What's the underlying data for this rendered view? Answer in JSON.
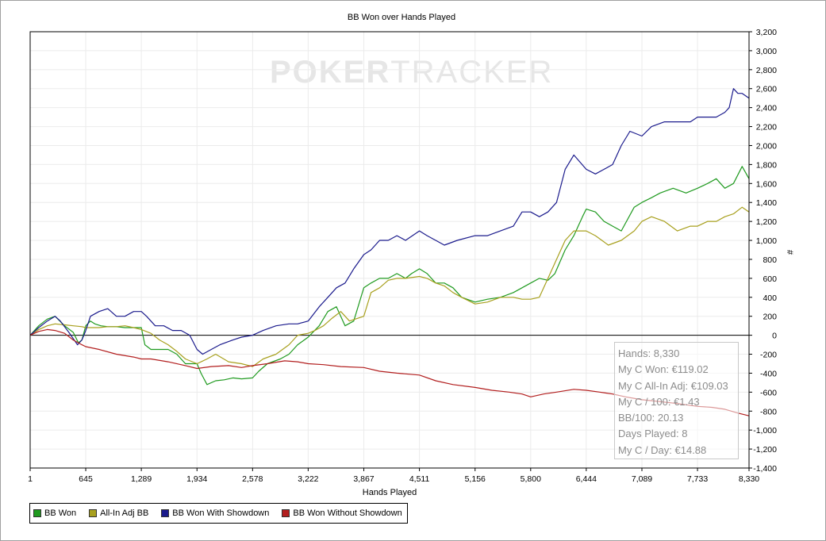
{
  "chart_data": {
    "type": "line",
    "title": "BB Won over Hands Played",
    "xlabel": "Hands Played",
    "ylabel": "#",
    "xlim": [
      1,
      8330
    ],
    "ylim": [
      -1400,
      3200
    ],
    "x_ticks": [
      1,
      645,
      1289,
      1934,
      2578,
      3222,
      3867,
      4511,
      5156,
      5800,
      6444,
      7089,
      7733,
      8330
    ],
    "x_tick_labels": [
      "1",
      "645",
      "1,289",
      "1,934",
      "2,578",
      "3,222",
      "3,867",
      "4,511",
      "5,156",
      "5,800",
      "6,444",
      "7,089",
      "7,733",
      "8,330"
    ],
    "y_ticks": [
      3200,
      3000,
      2800,
      2600,
      2400,
      2200,
      2000,
      1800,
      1600,
      1400,
      1200,
      1000,
      800,
      600,
      400,
      200,
      0,
      -200,
      -400,
      -600,
      -800,
      -1000,
      -1200,
      -1400
    ],
    "y_tick_labels": [
      "3,200",
      "3,000",
      "2,800",
      "2,600",
      "2,400",
      "2,200",
      "2,000",
      "1,800",
      "1,600",
      "1,400",
      "1,200",
      "1,000",
      "800",
      "600",
      "400",
      "200",
      "0",
      "-200",
      "-400",
      "-600",
      "-800",
      "-1,000",
      "-1,200",
      "-1,400"
    ],
    "grid": true,
    "legend_position": "bottom-left",
    "watermark": {
      "part1": "POKER",
      "part2": "TRACKER"
    },
    "series": [
      {
        "name": "BB Won",
        "color": "#1f9a1f",
        "x": [
          1,
          100,
          200,
          290,
          400,
          500,
          560,
          600,
          645,
          700,
          750,
          820,
          900,
          1000,
          1100,
          1200,
          1289,
          1330,
          1400,
          1500,
          1600,
          1700,
          1800,
          1934,
          1980,
          2050,
          2150,
          2250,
          2350,
          2450,
          2578,
          2650,
          2750,
          2900,
          3000,
          3100,
          3222,
          3350,
          3450,
          3550,
          3650,
          3750,
          3867,
          3950,
          4050,
          4150,
          4250,
          4350,
          4420,
          4511,
          4600,
          4700,
          4800,
          4900,
          5000,
          5156,
          5300,
          5450,
          5600,
          5700,
          5800,
          5900,
          6000,
          6080,
          6200,
          6300,
          6400,
          6444,
          6550,
          6650,
          6750,
          6850,
          7000,
          7089,
          7200,
          7300,
          7450,
          7600,
          7733,
          7850,
          7950,
          8050,
          8150,
          8250,
          8330
        ],
        "y": [
          0,
          100,
          170,
          200,
          100,
          30,
          -80,
          -50,
          100,
          150,
          120,
          100,
          90,
          90,
          80,
          80,
          80,
          -100,
          -150,
          -150,
          -150,
          -200,
          -300,
          -300,
          -400,
          -520,
          -480,
          -470,
          -450,
          -460,
          -450,
          -380,
          -300,
          -250,
          -200,
          -100,
          -20,
          100,
          250,
          300,
          100,
          150,
          500,
          550,
          600,
          600,
          650,
          600,
          650,
          700,
          650,
          550,
          550,
          500,
          400,
          350,
          380,
          400,
          450,
          500,
          550,
          600,
          580,
          650,
          900,
          1050,
          1250,
          1330,
          1300,
          1200,
          1150,
          1100,
          1350,
          1400,
          1450,
          1500,
          1550,
          1500,
          1550,
          1600,
          1650,
          1550,
          1600,
          1780,
          1650
        ]
      },
      {
        "name": "All-In Adj BB",
        "color": "#a8a01e",
        "x": [
          1,
          100,
          200,
          290,
          400,
          500,
          600,
          645,
          700,
          800,
          900,
          1000,
          1100,
          1200,
          1289,
          1400,
          1500,
          1600,
          1700,
          1800,
          1934,
          2050,
          2150,
          2300,
          2450,
          2578,
          2700,
          2850,
          3000,
          3100,
          3222,
          3300,
          3400,
          3500,
          3600,
          3700,
          3867,
          3950,
          4050,
          4150,
          4250,
          4350,
          4511,
          4600,
          4700,
          4800,
          4900,
          5000,
          5156,
          5300,
          5450,
          5600,
          5700,
          5800,
          5900,
          6000,
          6100,
          6200,
          6300,
          6444,
          6550,
          6700,
          6850,
          7000,
          7089,
          7200,
          7350,
          7500,
          7650,
          7733,
          7850,
          7950,
          8050,
          8150,
          8250,
          8330
        ],
        "y": [
          0,
          60,
          100,
          120,
          110,
          100,
          90,
          80,
          80,
          80,
          90,
          90,
          100,
          80,
          60,
          20,
          -50,
          -100,
          -170,
          -250,
          -300,
          -250,
          -200,
          -280,
          -300,
          -330,
          -250,
          -200,
          -100,
          0,
          20,
          50,
          100,
          180,
          250,
          150,
          200,
          450,
          500,
          580,
          600,
          600,
          620,
          600,
          550,
          520,
          450,
          400,
          330,
          350,
          400,
          400,
          380,
          380,
          400,
          600,
          800,
          1000,
          1100,
          1100,
          1050,
          950,
          1000,
          1100,
          1200,
          1250,
          1200,
          1100,
          1150,
          1150,
          1200,
          1200,
          1250,
          1280,
          1350,
          1300
        ]
      },
      {
        "name": "BB Won With Showdown",
        "color": "#1a1a8c",
        "x": [
          1,
          100,
          200,
          290,
          350,
          450,
          550,
          600,
          645,
          700,
          800,
          900,
          1000,
          1100,
          1200,
          1289,
          1350,
          1450,
          1550,
          1650,
          1750,
          1850,
          1934,
          2000,
          2100,
          2200,
          2350,
          2450,
          2578,
          2700,
          2850,
          3000,
          3100,
          3222,
          3350,
          3450,
          3550,
          3650,
          3750,
          3867,
          3950,
          4050,
          4150,
          4250,
          4350,
          4511,
          4600,
          4700,
          4800,
          4950,
          5156,
          5300,
          5450,
          5600,
          5700,
          5800,
          5900,
          6000,
          6100,
          6200,
          6300,
          6444,
          6550,
          6650,
          6750,
          6850,
          6950,
          7089,
          7200,
          7350,
          7500,
          7650,
          7733,
          7850,
          7950,
          8050,
          8100,
          8150,
          8200,
          8250,
          8330
        ],
        "y": [
          0,
          80,
          150,
          200,
          150,
          30,
          -100,
          -50,
          50,
          200,
          250,
          280,
          200,
          200,
          250,
          250,
          200,
          100,
          100,
          50,
          50,
          0,
          -150,
          -200,
          -150,
          -100,
          -50,
          -20,
          0,
          50,
          100,
          120,
          120,
          150,
          300,
          400,
          500,
          550,
          700,
          850,
          900,
          1000,
          1000,
          1050,
          1000,
          1100,
          1050,
          1000,
          950,
          1000,
          1050,
          1050,
          1100,
          1150,
          1300,
          1300,
          1250,
          1300,
          1400,
          1750,
          1900,
          1750,
          1700,
          1750,
          1800,
          2000,
          2150,
          2100,
          2200,
          2250,
          2250,
          2250,
          2300,
          2300,
          2300,
          2350,
          2400,
          2600,
          2550,
          2550,
          2500
        ]
      },
      {
        "name": "BB Won Without Showdown",
        "color": "#b21e1e",
        "x": [
          1,
          100,
          200,
          290,
          400,
          500,
          600,
          645,
          800,
          1000,
          1200,
          1289,
          1400,
          1600,
          1800,
          1934,
          2100,
          2300,
          2450,
          2578,
          2750,
          2950,
          3100,
          3222,
          3400,
          3600,
          3867,
          4050,
          4250,
          4511,
          4700,
          4900,
          5156,
          5350,
          5550,
          5700,
          5800,
          5950,
          6100,
          6300,
          6444,
          6600,
          6750,
          6900,
          7089,
          7300,
          7500,
          7733,
          7900,
          8050,
          8200,
          8330
        ],
        "y": [
          0,
          40,
          60,
          50,
          20,
          -50,
          -100,
          -120,
          -150,
          -200,
          -230,
          -250,
          -250,
          -280,
          -320,
          -350,
          -330,
          -320,
          -340,
          -320,
          -300,
          -270,
          -280,
          -300,
          -310,
          -330,
          -340,
          -380,
          -400,
          -420,
          -480,
          -520,
          -550,
          -580,
          -600,
          -620,
          -650,
          -620,
          -600,
          -570,
          -580,
          -600,
          -620,
          -650,
          -680,
          -700,
          -720,
          -750,
          -760,
          -780,
          -820,
          -850
        ]
      }
    ]
  },
  "stats": {
    "lines": [
      "Hands: 8,330",
      "My C Won: €119.02",
      "My C All-In Adj: €109.03",
      "My C / 100: €1.43",
      "BB/100: 20.13",
      "Days Played: 8",
      "My C / Day: €14.88"
    ]
  }
}
